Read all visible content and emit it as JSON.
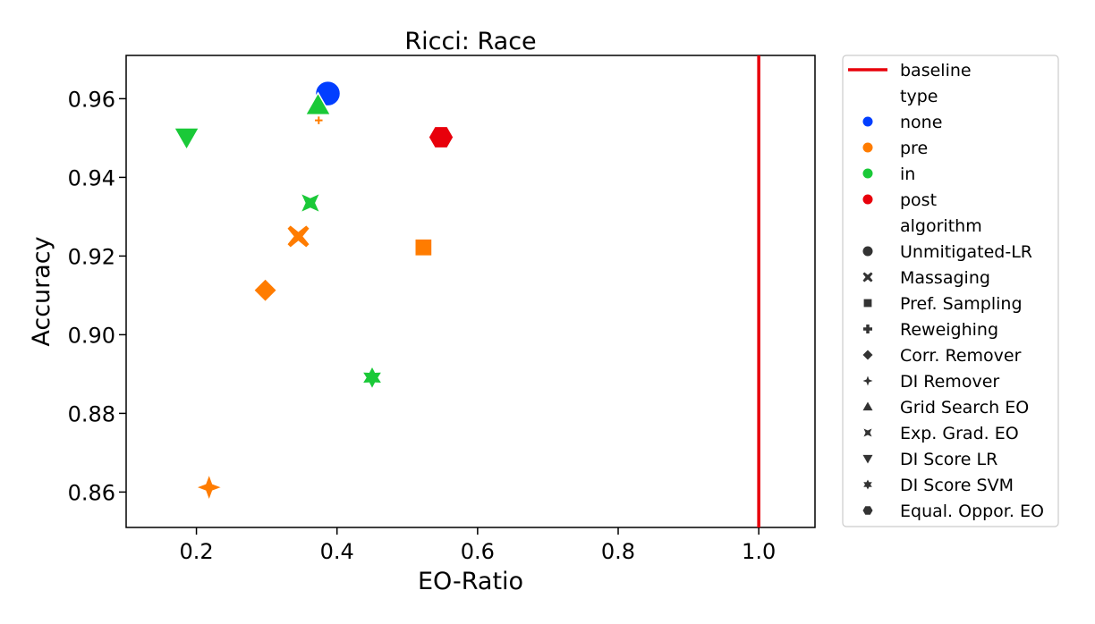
{
  "chart_data": {
    "type": "scatter",
    "title": "Ricci: Race",
    "xlabel": "EO-Ratio",
    "ylabel": "Accuracy",
    "xlim": [
      0.1,
      1.08
    ],
    "ylim": [
      0.851,
      0.971
    ],
    "xticks": [
      0.2,
      0.4,
      0.6,
      0.8,
      1.0
    ],
    "yticks": [
      0.86,
      0.88,
      0.9,
      0.92,
      0.94,
      0.96
    ],
    "xtick_labels": [
      "0.2",
      "0.4",
      "0.6",
      "0.8",
      "1.0"
    ],
    "ytick_labels": [
      "0.86",
      "0.88",
      "0.90",
      "0.92",
      "0.94",
      "0.96"
    ],
    "grid": false,
    "legend_position": "outside-right",
    "baseline": {
      "label": "baseline",
      "x": 1.0,
      "color": "#e8000b"
    },
    "type_colors": {
      "none": "#023eff",
      "pre": "#ff7c00",
      "in": "#1ac938",
      "post": "#e8000b"
    },
    "points": [
      {
        "algorithm": "Unmitigated-LR",
        "type": "none",
        "x": 0.387,
        "y": 0.9613
      },
      {
        "algorithm": "Massaging",
        "type": "pre",
        "x": 0.345,
        "y": 0.925
      },
      {
        "algorithm": "Pref. Sampling",
        "type": "pre",
        "x": 0.523,
        "y": 0.9222
      },
      {
        "algorithm": "Reweighing",
        "type": "pre",
        "x": 0.374,
        "y": 0.9545
      },
      {
        "algorithm": "Corr. Remover",
        "type": "pre",
        "x": 0.298,
        "y": 0.9113
      },
      {
        "algorithm": "DI Remover",
        "type": "pre",
        "x": 0.218,
        "y": 0.8612
      },
      {
        "algorithm": "Grid Search EO",
        "type": "in",
        "x": 0.373,
        "y": 0.9583
      },
      {
        "algorithm": "Exp. Grad. EO",
        "type": "in",
        "x": 0.362,
        "y": 0.9335
      },
      {
        "algorithm": "DI Score LR",
        "type": "in",
        "x": 0.186,
        "y": 0.9502
      },
      {
        "algorithm": "DI Score SVM",
        "type": "in",
        "x": 0.45,
        "y": 0.8891
      },
      {
        "algorithm": "Equal. Oppor. EO",
        "type": "post",
        "x": 0.548,
        "y": 0.9502
      }
    ],
    "legend": {
      "baseline_label": "baseline",
      "type_header": "type",
      "type_entries": [
        "none",
        "pre",
        "in",
        "post"
      ],
      "algorithm_header": "algorithm",
      "algorithm_entries": [
        "Unmitigated-LR",
        "Massaging",
        "Pref. Sampling",
        "Reweighing",
        "Corr. Remover",
        "DI Remover",
        "Grid Search EO",
        "Exp. Grad. EO",
        "DI Score LR",
        "DI Score SVM",
        "Equal. Oppor. EO"
      ]
    },
    "marker_shapes": {
      "Unmitigated-LR": "circle-icon",
      "Massaging": "x-icon",
      "Pref. Sampling": "square-icon",
      "Reweighing": "plus-icon",
      "Corr. Remover": "diamond-icon",
      "DI Remover": "four-point-star-icon",
      "Grid Search EO": "triangle-up-icon",
      "Exp. Grad. EO": "bowtie-icon",
      "DI Score LR": "triangle-down-icon",
      "DI Score SVM": "six-point-star-icon",
      "Equal. Oppor. EO": "hexagon-icon"
    }
  }
}
